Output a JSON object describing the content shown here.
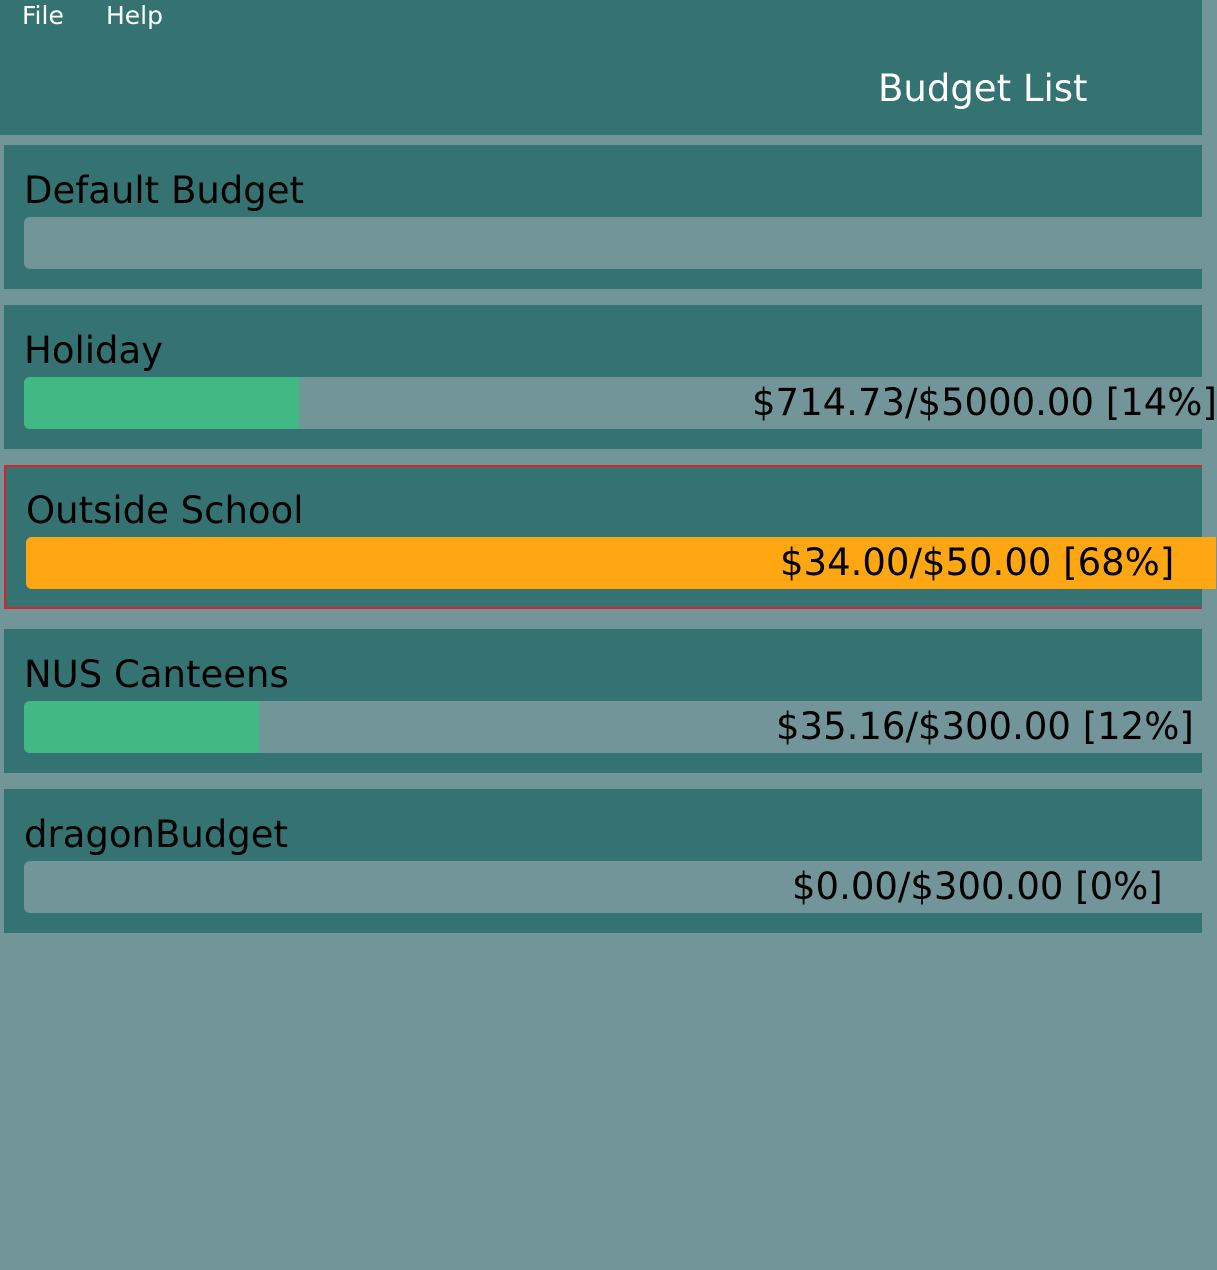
{
  "menu": {
    "file_label": "File",
    "help_label": "Help"
  },
  "header": {
    "title": "Budget List"
  },
  "colors": {
    "background": "#719599",
    "panel": "#357373",
    "ok_fill": "#41b984",
    "warning_fill": "#fea713",
    "selected_border": "#d9222a"
  },
  "budgets": [
    {
      "name": "Default Budget",
      "amount_text": "",
      "percent": 0,
      "status": "empty",
      "selected": false
    },
    {
      "name": "Holiday",
      "amount_text": "$714.73/$5000.00 [14%]",
      "percent": 14,
      "status": "ok",
      "selected": false
    },
    {
      "name": "Outside School",
      "amount_text": "$34.00/$50.00 [68%]",
      "percent": 68,
      "status": "warning",
      "selected": true
    },
    {
      "name": "NUS Canteens",
      "amount_text": "$35.16/$300.00 [12%]",
      "percent": 12,
      "status": "ok",
      "selected": false
    },
    {
      "name": "dragonBudget",
      "amount_text": "$0.00/$300.00 [0%]",
      "percent": 0,
      "status": "ok",
      "selected": false
    }
  ]
}
